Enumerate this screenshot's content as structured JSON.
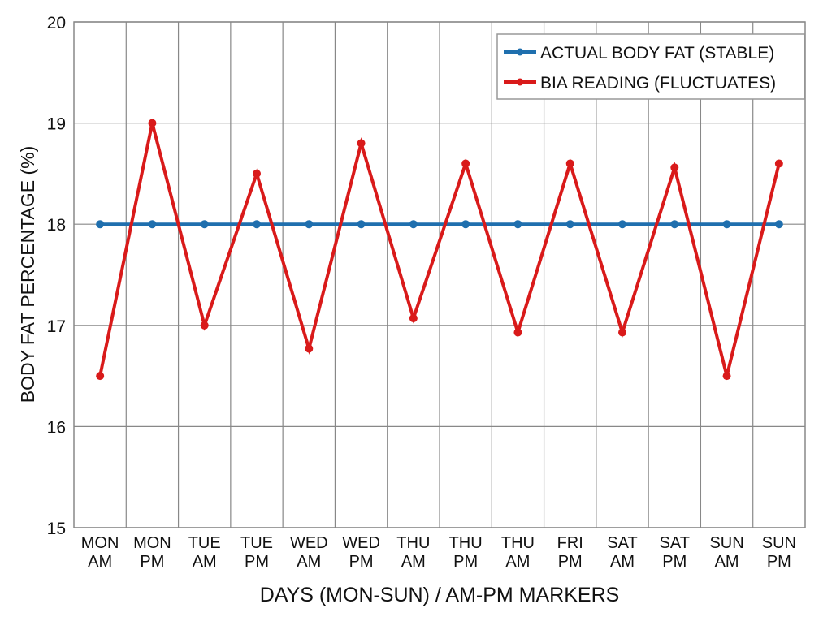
{
  "chart_data": {
    "type": "line",
    "title": "",
    "xlabel": "DAYS (MON-SUN) / AM-PM MARKERS",
    "ylabel": "BODY FAT PERCENTAGE (%)",
    "ylim": [
      15,
      20
    ],
    "yticks": [
      "15",
      "16",
      "17",
      "18",
      "19",
      "20"
    ],
    "grid": true,
    "legend_position": "top-right",
    "categories": [
      [
        "MON",
        "AM"
      ],
      [
        "MON",
        "PM"
      ],
      [
        "TUE",
        "AM"
      ],
      [
        "TUE",
        "PM"
      ],
      [
        "WED",
        "AM"
      ],
      [
        "WED",
        "PM"
      ],
      [
        "THU",
        "AM"
      ],
      [
        "THU",
        "PM"
      ],
      [
        "THU",
        "AM"
      ],
      [
        "FRI",
        "PM"
      ],
      [
        "SAT",
        "AM"
      ],
      [
        "SAT",
        "PM"
      ],
      [
        "SUN",
        "AM"
      ],
      [
        "SUN",
        "PM"
      ]
    ],
    "series": [
      {
        "name": "ACTUAL BODY FAT (STABLE)",
        "color": "#1f6fae",
        "values": [
          18,
          18,
          18,
          18,
          18,
          18,
          18,
          18,
          18,
          18,
          18,
          18,
          18,
          18
        ]
      },
      {
        "name": "BIA READING (FLUCTUATES)",
        "color": "#d91a1a",
        "values": [
          16.5,
          19.0,
          17.0,
          18.5,
          16.77,
          18.8,
          17.07,
          18.6,
          16.93,
          18.6,
          16.93,
          18.56,
          16.5,
          18.6
        ]
      }
    ]
  }
}
